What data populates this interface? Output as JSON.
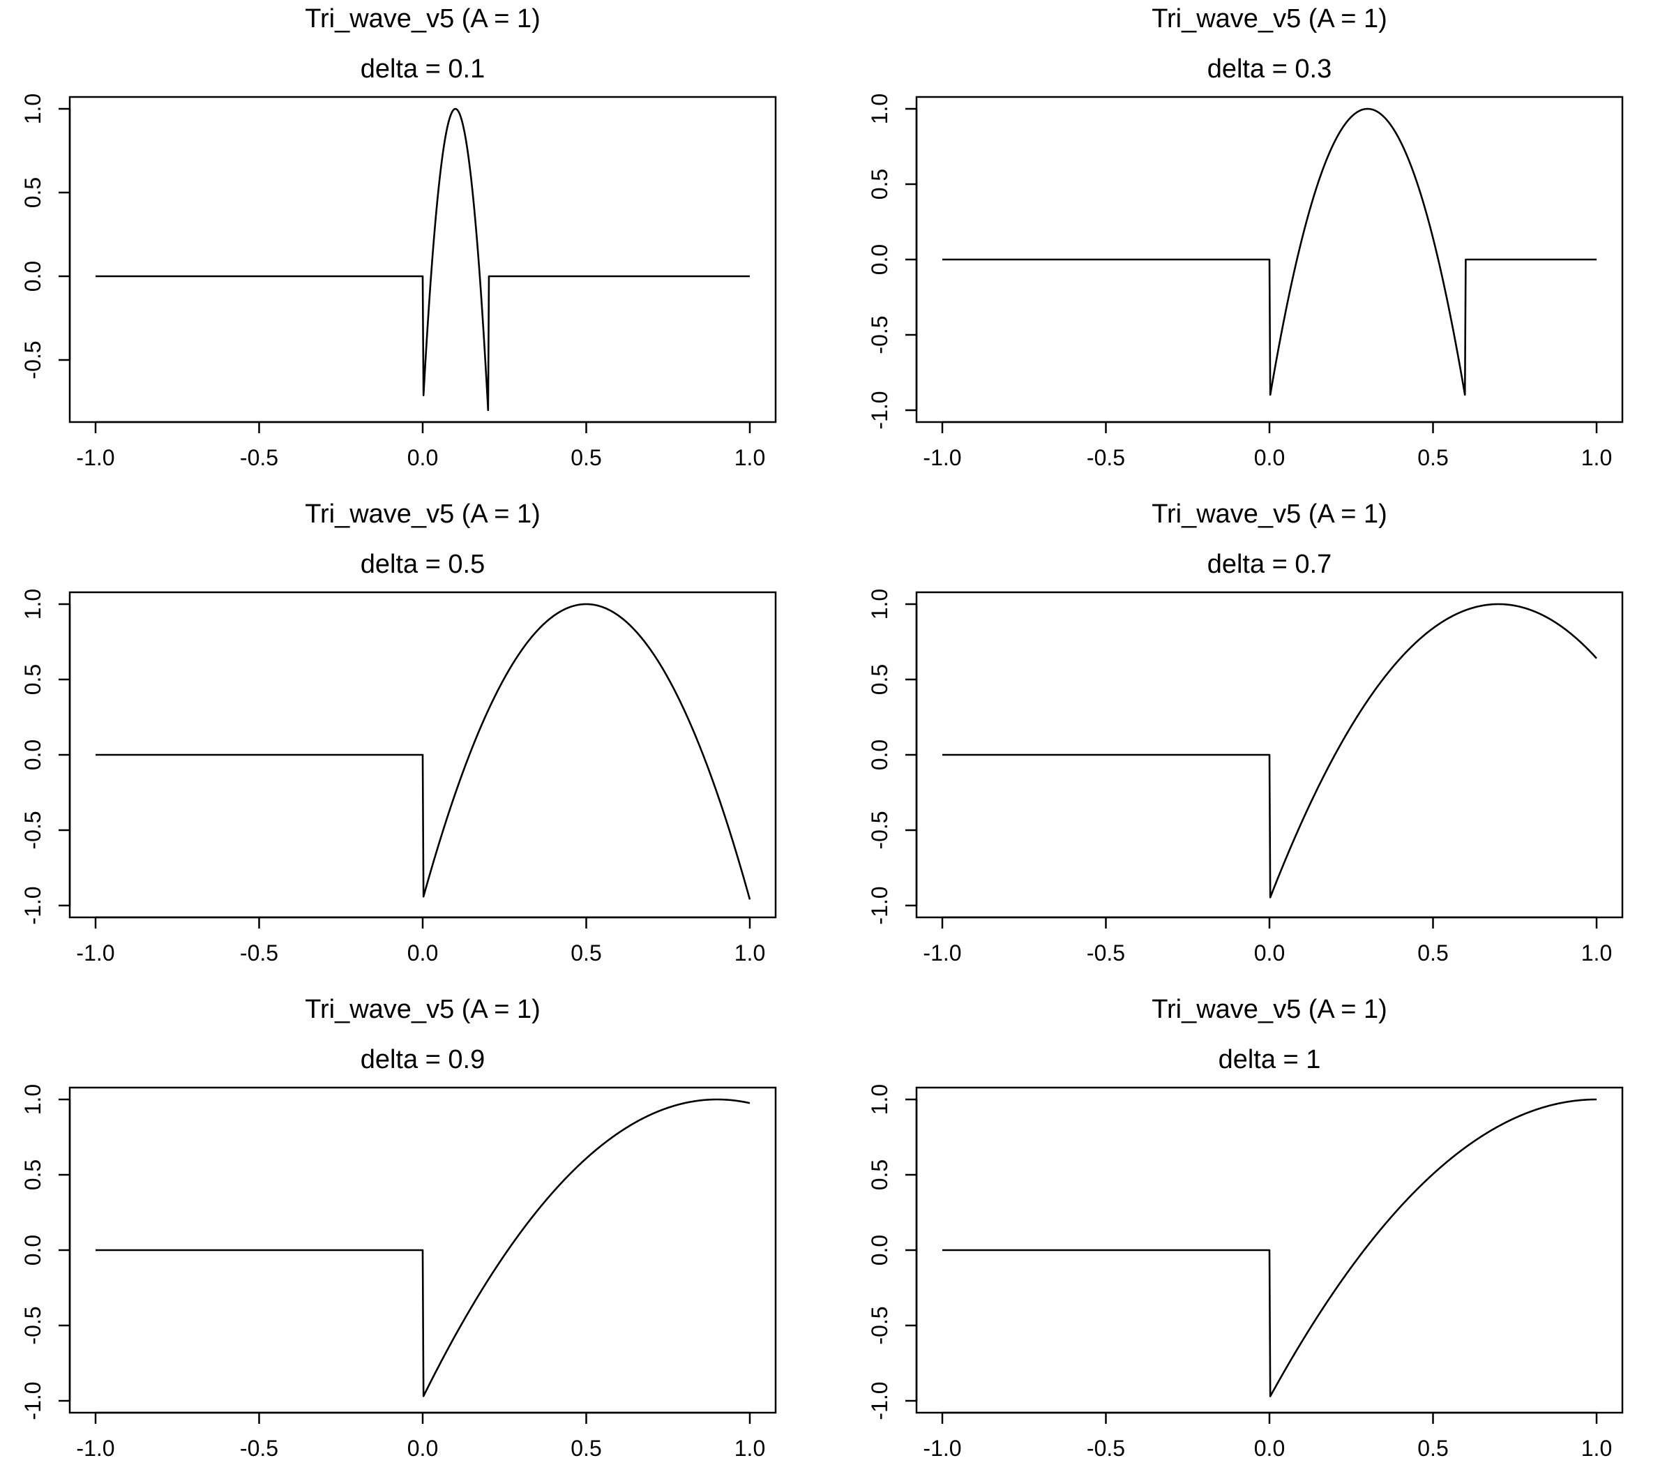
{
  "chart_data": [
    {
      "type": "line",
      "title": "Tri_wave_v5 (A = 1)",
      "subtitle": "delta =  0.1",
      "delta": 0.1,
      "xlim": [
        -1.0,
        1.0
      ],
      "ylim": [
        -0.8,
        1.0
      ],
      "xticks": [
        "-1.0",
        "-0.5",
        "0.0",
        "0.5",
        "1.0"
      ],
      "yticks": [
        "-0.5",
        "0.0",
        "0.5",
        "1.0"
      ],
      "x": [
        -1.0,
        -0.5,
        0.0,
        0.005,
        0.05,
        0.1,
        0.15,
        0.195,
        0.2,
        0.205,
        0.5,
        1.0
      ],
      "y": [
        0.0,
        0.0,
        0.0,
        -0.8,
        0.83,
        1.0,
        0.83,
        -0.8,
        0.0,
        0.0,
        0.0,
        0.0
      ]
    },
    {
      "type": "line",
      "title": "Tri_wave_v5 (A = 1)",
      "subtitle": "delta =  0.3",
      "delta": 0.3,
      "xlim": [
        -1.0,
        1.0
      ],
      "ylim": [
        -1.0,
        1.0
      ],
      "xticks": [
        "-1.0",
        "-0.5",
        "0.0",
        "0.5",
        "1.0"
      ],
      "yticks": [
        "-1.0",
        "-0.5",
        "0.0",
        "0.5",
        "1.0"
      ],
      "x": [
        -1.0,
        -0.5,
        0.0,
        0.005,
        0.15,
        0.3,
        0.45,
        0.595,
        0.6,
        0.605,
        1.0
      ],
      "y": [
        0.0,
        0.0,
        0.0,
        -0.93,
        0.55,
        1.0,
        0.55,
        -0.93,
        0.0,
        0.0,
        0.0
      ]
    },
    {
      "type": "line",
      "title": "Tri_wave_v5 (A = 1)",
      "subtitle": "delta =  0.5",
      "delta": 0.5,
      "xlim": [
        -1.0,
        1.0
      ],
      "ylim": [
        -1.0,
        1.0
      ],
      "xticks": [
        "-1.0",
        "-0.5",
        "0.0",
        "0.5",
        "1.0"
      ],
      "yticks": [
        "-1.0",
        "-0.5",
        "0.0",
        "0.5",
        "1.0"
      ],
      "x": [
        -1.0,
        -0.5,
        0.0,
        0.005,
        0.1,
        0.25,
        0.5,
        0.75,
        0.9,
        1.0
      ],
      "y": [
        0.0,
        0.0,
        0.0,
        -0.96,
        0.05,
        0.72,
        1.0,
        0.72,
        0.05,
        -0.96
      ]
    },
    {
      "type": "line",
      "title": "Tri_wave_v5 (A = 1)",
      "subtitle": "delta =  0.7",
      "delta": 0.7,
      "xlim": [
        -1.0,
        1.0
      ],
      "ylim": [
        -1.0,
        1.0
      ],
      "xticks": [
        "-1.0",
        "-0.5",
        "0.0",
        "0.5",
        "1.0"
      ],
      "yticks": [
        "-1.0",
        "-0.5",
        "0.0",
        "0.5",
        "1.0"
      ],
      "x": [
        -1.0,
        -0.5,
        0.0,
        0.005,
        0.1,
        0.3,
        0.5,
        0.7,
        0.85,
        1.0
      ],
      "y": [
        0.0,
        0.0,
        0.0,
        -0.96,
        -0.35,
        0.42,
        0.87,
        1.0,
        0.9,
        0.63
      ]
    },
    {
      "type": "line",
      "title": "Tri_wave_v5 (A = 1)",
      "subtitle": "delta =  0.9",
      "delta": 0.9,
      "xlim": [
        -1.0,
        1.0
      ],
      "ylim": [
        -1.0,
        1.0
      ],
      "xticks": [
        "-1.0",
        "-0.5",
        "0.0",
        "0.5",
        "1.0"
      ],
      "yticks": [
        "-1.0",
        "-0.5",
        "0.0",
        "0.5",
        "1.0"
      ],
      "x": [
        -1.0,
        -0.5,
        0.0,
        0.005,
        0.2,
        0.5,
        0.75,
        0.9,
        1.0
      ],
      "y": [
        0.0,
        0.0,
        0.0,
        -0.98,
        -0.3,
        0.6,
        0.93,
        1.0,
        0.97
      ]
    },
    {
      "type": "line",
      "title": "Tri_wave_v5 (A = 1)",
      "subtitle": "delta =  1",
      "delta": 1,
      "xlim": [
        -1.0,
        1.0
      ],
      "ylim": [
        -1.0,
        1.0
      ],
      "xticks": [
        "-1.0",
        "-0.5",
        "0.0",
        "0.5",
        "1.0"
      ],
      "yticks": [
        "-1.0",
        "-0.5",
        "0.0",
        "0.5",
        "1.0"
      ],
      "x": [
        -1.0,
        -0.5,
        0.0,
        0.005,
        0.25,
        0.5,
        0.75,
        1.0
      ],
      "y": [
        0.0,
        0.0,
        0.0,
        -0.98,
        -0.2,
        0.52,
        0.88,
        1.0
      ]
    }
  ]
}
